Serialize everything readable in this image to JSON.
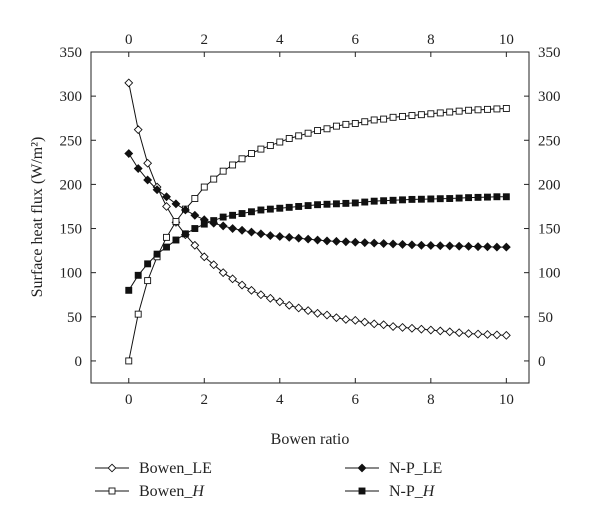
{
  "chart_data": {
    "type": "line",
    "xlabel": "Bowen ratio",
    "ylabel": "Surface heat flux (W/m²)",
    "xlim": [
      -1,
      10.6
    ],
    "ylim": [
      -25,
      350
    ],
    "x_ticks": [
      0,
      2,
      4,
      6,
      8,
      10
    ],
    "y_ticks": [
      0,
      50,
      100,
      150,
      200,
      250,
      300,
      350
    ],
    "x_tick_labels": [
      "0",
      "2",
      "4",
      "6",
      "8",
      "10"
    ],
    "y_tick_labels": [
      "0",
      "50",
      "100",
      "150",
      "200",
      "250",
      "300",
      "350"
    ],
    "grid": false,
    "legend_position": "bottom",
    "series": [
      {
        "name": "Bowen_LE",
        "marker": "open-diamond",
        "color": "#111111",
        "x": [
          0,
          0.25,
          0.5,
          0.75,
          1,
          1.25,
          1.5,
          1.75,
          2,
          2.25,
          2.5,
          2.75,
          3,
          3.25,
          3.5,
          3.75,
          4,
          4.25,
          4.5,
          4.75,
          5,
          5.25,
          5.5,
          5.75,
          6,
          6.25,
          6.5,
          6.75,
          7,
          7.25,
          7.5,
          7.75,
          8,
          8.25,
          8.5,
          8.75,
          9,
          9.25,
          9.5,
          9.75,
          10
        ],
        "y": [
          315,
          262,
          224,
          197,
          175,
          157,
          143,
          131,
          118,
          109,
          100,
          93,
          86,
          80,
          75,
          71,
          67,
          63,
          60,
          57,
          54,
          52,
          49,
          47,
          46,
          44,
          42,
          41,
          39,
          38,
          37,
          36,
          35,
          34,
          33,
          32,
          31,
          30.5,
          30,
          29.5,
          29
        ]
      },
      {
        "name": "Bowen_H",
        "name_parts": [
          "Bowen_",
          "H"
        ],
        "marker": "open-square",
        "color": "#111111",
        "x": [
          0,
          0.25,
          0.5,
          0.75,
          1,
          1.25,
          1.5,
          1.75,
          2,
          2.25,
          2.5,
          2.75,
          3,
          3.25,
          3.5,
          3.75,
          4,
          4.25,
          4.5,
          4.75,
          5,
          5.25,
          5.5,
          5.75,
          6,
          6.25,
          6.5,
          6.75,
          7,
          7.25,
          7.5,
          7.75,
          8,
          8.25,
          8.5,
          8.75,
          9,
          9.25,
          9.5,
          9.75,
          10
        ],
        "y": [
          0,
          53,
          91,
          118,
          140,
          158,
          172,
          184,
          197,
          206,
          215,
          222,
          229,
          235,
          240,
          244,
          248,
          252,
          255,
          258,
          261,
          263,
          266,
          268,
          269,
          271,
          273,
          274,
          276,
          277,
          278,
          279,
          280,
          281,
          282,
          283,
          284,
          284.5,
          285,
          285.5,
          286
        ]
      },
      {
        "name": "N-P_LE",
        "marker": "filled-diamond",
        "color": "#111111",
        "x": [
          0,
          0.25,
          0.5,
          0.75,
          1,
          1.25,
          1.5,
          1.75,
          2,
          2.25,
          2.5,
          2.75,
          3,
          3.25,
          3.5,
          3.75,
          4,
          4.25,
          4.5,
          4.75,
          5,
          5.25,
          5.5,
          5.75,
          6,
          6.25,
          6.5,
          6.75,
          7,
          7.25,
          7.5,
          7.75,
          8,
          8.25,
          8.5,
          8.75,
          9,
          9.25,
          9.5,
          9.75,
          10
        ],
        "y": [
          235,
          218,
          205,
          194,
          186,
          178,
          171,
          165,
          160,
          156,
          153,
          150,
          148,
          146,
          144,
          142,
          141,
          140,
          139,
          138,
          137,
          136,
          135.5,
          135,
          134.5,
          134,
          133.5,
          133,
          132.5,
          132,
          131.5,
          131,
          130.8,
          130.5,
          130.3,
          130,
          129.8,
          129.5,
          129.3,
          129,
          129
        ]
      },
      {
        "name": "N-P_H",
        "name_parts": [
          "N-P_",
          "H"
        ],
        "marker": "filled-square",
        "color": "#111111",
        "x": [
          0,
          0.25,
          0.5,
          0.75,
          1,
          1.25,
          1.5,
          1.75,
          2,
          2.25,
          2.5,
          2.75,
          3,
          3.25,
          3.5,
          3.75,
          4,
          4.25,
          4.5,
          4.75,
          5,
          5.25,
          5.5,
          5.75,
          6,
          6.25,
          6.5,
          6.75,
          7,
          7.25,
          7.5,
          7.75,
          8,
          8.25,
          8.5,
          8.75,
          9,
          9.25,
          9.5,
          9.75,
          10
        ],
        "y": [
          80,
          97,
          110,
          121,
          129,
          137,
          144,
          150,
          155,
          159,
          163,
          165,
          167,
          169,
          171,
          172,
          173,
          174,
          175,
          176,
          177,
          177.5,
          178,
          178.5,
          179,
          180,
          181,
          181.5,
          182,
          182.5,
          183,
          183.2,
          183.5,
          183.8,
          184,
          184.5,
          185,
          185.3,
          185.6,
          186,
          186
        ]
      }
    ]
  }
}
